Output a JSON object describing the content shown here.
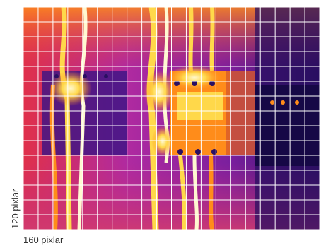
{
  "thermal_image": {
    "caption_width": "160 pixlar",
    "caption_height": "120 pixlar",
    "grid_columns": 20,
    "grid_rows": 15,
    "palette": {
      "cold": "#1a0a5c",
      "cool": "#5a1aa0",
      "mid": "#b02aa0",
      "warm": "#e0304a",
      "hot": "#ff8c1a",
      "very_hot": "#ffd84a",
      "white_hot": "#fff8d0",
      "grid": "#ffffff"
    }
  }
}
